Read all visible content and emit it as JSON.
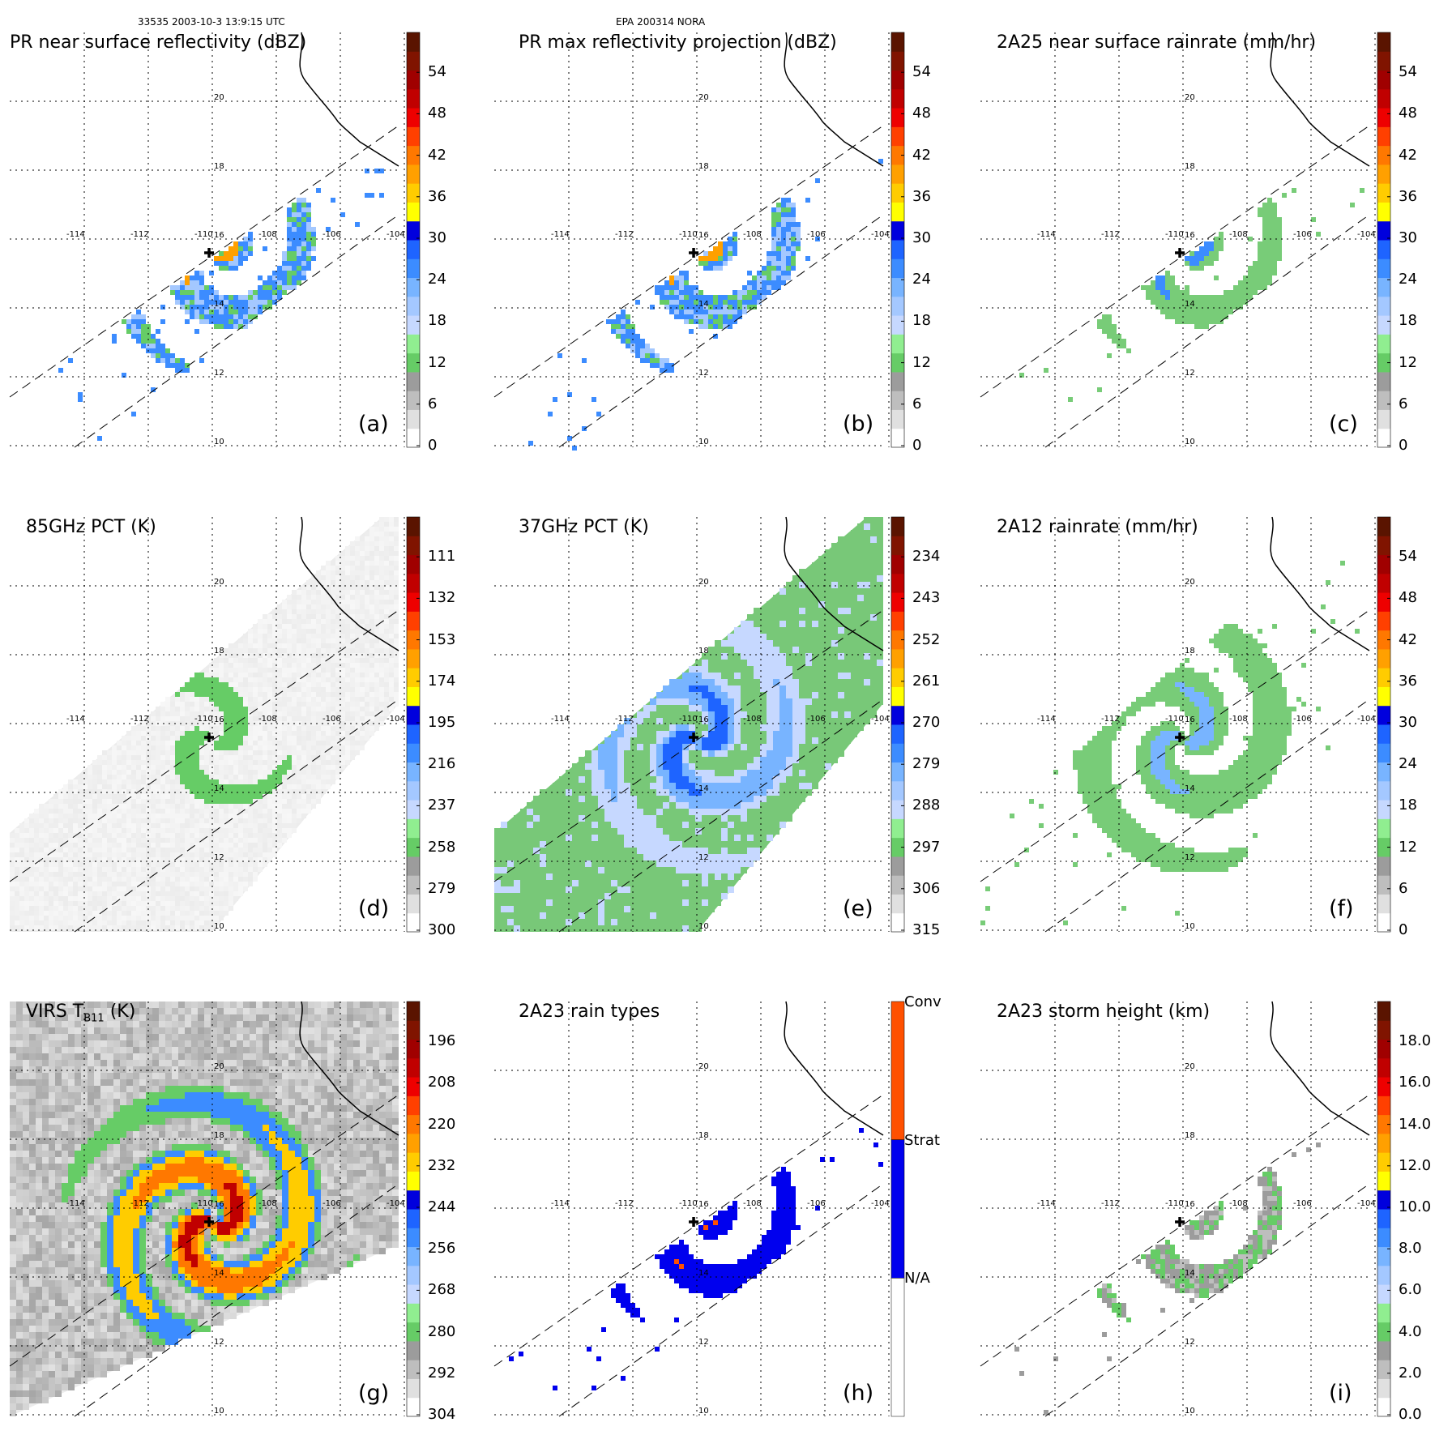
{
  "header": {
    "left": "33535 2003-10-3 13:9:15 UTC",
    "center": "EPA 200314 NORA"
  },
  "map": {
    "lon_ticks": [
      -114,
      -112,
      -110,
      -108,
      -106,
      -104
    ],
    "lon_labels": [
      "-114",
      "-112",
      "-110",
      "-108",
      "-106",
      "-104"
    ],
    "lat_ticks": [
      10,
      12,
      14,
      16,
      18,
      20
    ],
    "lat_labels": [
      "10",
      "12",
      "14",
      "16",
      "18",
      "20"
    ],
    "storm_center": {
      "lon": -110.1,
      "lat": 15.6
    }
  },
  "chart_data": [
    {
      "type": "heatmap",
      "id": "a",
      "title": "PR near surface reflectivity (dBZ)",
      "panel_label": "(a)",
      "colorbar_ticks": [
        "54",
        "48",
        "42",
        "36",
        "30",
        "24",
        "18",
        "12",
        "6",
        "0"
      ],
      "colorbar_range": [
        0,
        60
      ],
      "swath": "pr",
      "field": "pr-reflectivity"
    },
    {
      "type": "heatmap",
      "id": "b",
      "title": "PR max reflectivity projection (dBZ)",
      "panel_label": "(b)",
      "colorbar_ticks": [
        "54",
        "48",
        "42",
        "36",
        "30",
        "24",
        "18",
        "12",
        "6",
        "0"
      ],
      "colorbar_range": [
        0,
        60
      ],
      "swath": "pr",
      "field": "pr-max"
    },
    {
      "type": "heatmap",
      "id": "c",
      "title": "2A25 near surface rainrate (mm/hr)",
      "panel_label": "(c)",
      "colorbar_ticks": [
        "54",
        "48",
        "42",
        "36",
        "30",
        "24",
        "18",
        "12",
        "6",
        "0"
      ],
      "colorbar_range": [
        0,
        60
      ],
      "swath": "pr",
      "field": "pr-rain"
    },
    {
      "type": "heatmap",
      "id": "d",
      "title": "85GHz PCT (K)",
      "panel_label": "(d)",
      "colorbar_ticks": [
        "111",
        "132",
        "153",
        "174",
        "195",
        "216",
        "237",
        "258",
        "279",
        "300"
      ],
      "colorbar_range": [
        90,
        300
      ],
      "swath": "tmi",
      "field": "pct85"
    },
    {
      "type": "heatmap",
      "id": "e",
      "title": "37GHz PCT (K)",
      "panel_label": "(e)",
      "colorbar_ticks": [
        "234",
        "243",
        "252",
        "261",
        "270",
        "279",
        "288",
        "297",
        "306",
        "315"
      ],
      "colorbar_range": [
        225,
        315
      ],
      "swath": "tmi",
      "field": "pct37"
    },
    {
      "type": "heatmap",
      "id": "f",
      "title": "2A12 rainrate (mm/hr)",
      "panel_label": "(f)",
      "colorbar_ticks": [
        "54",
        "48",
        "42",
        "36",
        "30",
        "24",
        "18",
        "12",
        "6",
        "0"
      ],
      "colorbar_range": [
        0,
        60
      ],
      "swath": "tmi",
      "field": "tmi-rain"
    },
    {
      "type": "heatmap",
      "id": "g",
      "title_main": "VIRS T",
      "title_sub": "B11",
      "title_unit": " (K)",
      "panel_label": "(g)",
      "colorbar_ticks": [
        "196",
        "208",
        "220",
        "232",
        "244",
        "256",
        "268",
        "280",
        "292",
        "304"
      ],
      "colorbar_range": [
        184,
        304
      ],
      "swath": "virs",
      "field": "virs"
    },
    {
      "type": "heatmap",
      "id": "h",
      "title": "2A23 rain types",
      "panel_label": "(h)",
      "colorbar_categories": [
        "Conv",
        "Strat",
        "N/A"
      ],
      "swath": "pr",
      "field": "raintype"
    },
    {
      "type": "heatmap",
      "id": "i",
      "title": "2A23 storm height (km)",
      "panel_label": "(i)",
      "colorbar_ticks": [
        "18.0",
        "16.0",
        "14.0",
        "12.0",
        "10.0",
        "8.0",
        "6.0",
        "4.0",
        "2.0",
        "0.0"
      ],
      "colorbar_range": [
        0,
        20
      ],
      "swath": "pr",
      "field": "height"
    }
  ],
  "colors": {
    "scale_rain": [
      "#ffffff",
      "#e0e0e0",
      "#bebebe",
      "#9c9c9c",
      "#66cc66",
      "#90ee90",
      "#c6d8ff",
      "#a4c8ff",
      "#78b4ff",
      "#3c8cff",
      "#1e64ff",
      "#0000dd",
      "#ffff00",
      "#ffcc00",
      "#ffa000",
      "#ff7800",
      "#ff4000",
      "#ee0000",
      "#c00000",
      "#a00000",
      "#801400",
      "#5a1400"
    ],
    "raintype": [
      "#ffffff",
      "#0000ee",
      "#ff5000"
    ],
    "coast": "#000000"
  }
}
